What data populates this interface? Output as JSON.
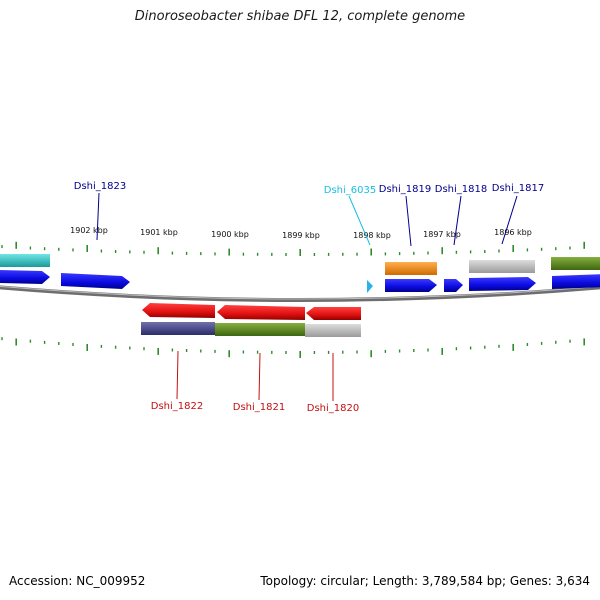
{
  "title": "Dinoroseobacter shibae DFL 12, complete genome",
  "accession": "Accession: NC_009952",
  "summary": "Topology: circular; Length: 3,789,584 bp; Genes: 3,634",
  "ticks": [
    "1902 kbp",
    "1901 kbp",
    "1900 kbp",
    "1899 kbp",
    "1898 kbp",
    "1897 kbp",
    "1896 kbp"
  ],
  "genes_above": [
    {
      "name": "Dshi_1823",
      "color": "#00008b"
    },
    {
      "name": "Dshi_6035",
      "color": "#19bfe0"
    },
    {
      "name": "Dshi_1819",
      "color": "#00008b"
    },
    {
      "name": "Dshi_1818",
      "color": "#00008b"
    },
    {
      "name": "Dshi_1817",
      "color": "#00008b"
    }
  ],
  "genes_below": [
    {
      "name": "Dshi_1822",
      "color": "#c41010"
    },
    {
      "name": "Dshi_1821",
      "color": "#c41010"
    },
    {
      "name": "Dshi_1820",
      "color": "#c41010"
    }
  ],
  "colors": {
    "gene_forward": "#0b0bdc",
    "gene_reverse": "#e01010",
    "backbone": "#777777",
    "tick": "#2e8b2e",
    "cog_cyan": "#2dbfbf",
    "cog_orange": "#f08c1a",
    "cog_gray": "#b4b4b4",
    "cog_olive": "#5a8a1e",
    "cog_navy": "#4a4a8a"
  }
}
